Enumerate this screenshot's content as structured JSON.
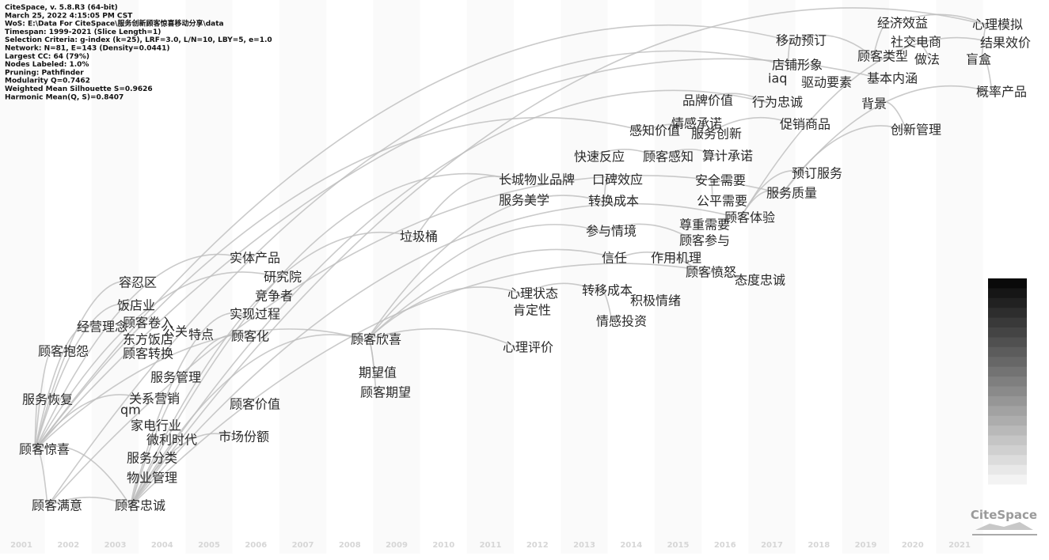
{
  "info": [
    "CiteSpace, v. 5.8.R3 (64-bit)",
    "March 25, 2022 4:15:05 PM CST",
    "WoS: E:\\Data For CiteSpace\\服务创新顾客惊喜移动分享\\data",
    "Timespan: 1999-2021 (Slice Length=1)",
    "Selection Criteria: g-index (k=25), LRF=3.0, L/N=10, LBY=5, e=1.0",
    "Network: N=81, E=143 (Density=0.0441)",
    "Largest CC: 64 (79%)",
    "Nodes Labeled: 1.0%",
    "Pruning: Pathfinder",
    "Modularity Q=0.7462",
    "Weighted Mean Silhouette S=0.9626",
    "Harmonic Mean(Q, S)=0.8407"
  ],
  "nodes": [
    "移动预订",
    "经济效益",
    "心理模拟",
    "社交电商",
    "结果效价",
    "店铺形象",
    "顾客类型",
    "做法",
    "盲盒",
    "iaq",
    "驱动要素",
    "基本内涵",
    "品牌价值",
    "行为忠诚",
    "背景",
    "概率产品",
    "情感承诺",
    "感知价值",
    "服务创新",
    "促销商品",
    "创新管理",
    "快速反应",
    "顾客感知",
    "算计承诺",
    "预订服务",
    "长城物业品牌",
    "口碑效应",
    "安全需要",
    "服务质量",
    "服务美学",
    "转换成本",
    "公平需要",
    "顾客体验",
    "尊重需要",
    "参与情境",
    "垃圾桶",
    "顾客参与",
    "实体产品",
    "信任",
    "作用机理",
    "研究院",
    "顾客愤怒",
    "态度忠诚",
    "容忍区",
    "竞争者",
    "心理状态",
    "转移成本",
    "积极情绪",
    "饭店业",
    "实现过程",
    "肯定性",
    "顾客卷入",
    "经营理念",
    "公关",
    "特点",
    "东方饭店",
    "顾客化",
    "顾客欣喜",
    "情感投资",
    "心理评价",
    "顾客抱怨",
    "顾客转换",
    "期望值",
    "服务管理",
    "顾客期望",
    "服务恢复",
    "关系营销",
    "qm",
    "顾客价值",
    "家电行业",
    "微利时代",
    "市场份额",
    "顾客惊喜",
    "服务分类",
    "物业管理",
    "顾客满意",
    "顾客忠诚"
  ],
  "years": [
    2001,
    2002,
    2003,
    2004,
    2005,
    2006,
    2007,
    2008,
    2009,
    2010,
    2011,
    2012,
    2013,
    2014,
    2015,
    2016,
    2017,
    2018,
    2019,
    2020,
    2021
  ],
  "logo": "CiteSpace"
}
